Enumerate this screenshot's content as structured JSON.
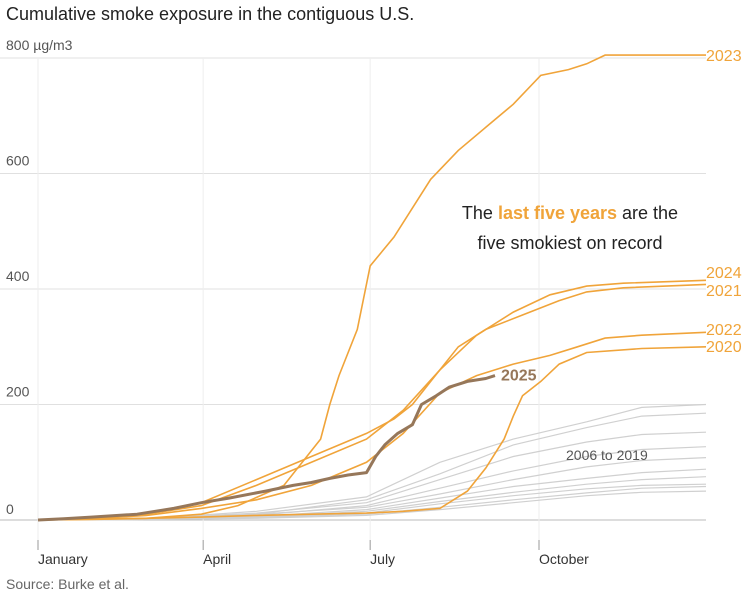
{
  "title": "Cumulative smoke exposure in the contiguous U.S.",
  "source": "Source: Burke et al.",
  "annotation": {
    "before": "The ",
    "highlight": "last five years",
    "after_line1": " are the",
    "line2": "five smokiest on record"
  },
  "chart_data": {
    "type": "line",
    "title": "Cumulative smoke exposure in the contiguous U.S.",
    "ylabel": "",
    "unit": "µg/m3",
    "y_ticks": [
      0,
      200,
      400,
      600,
      800
    ],
    "y_tick_labels": [
      "0",
      "200",
      "400",
      "600",
      "800 µg/m3"
    ],
    "ylim": [
      0,
      800
    ],
    "x_unit": "day of year",
    "xlim": [
      1,
      365
    ],
    "x_ticks": [
      {
        "label": "January",
        "day": 1
      },
      {
        "label": "April",
        "day": 91
      },
      {
        "label": "July",
        "day": 182
      },
      {
        "label": "October",
        "day": 274
      }
    ],
    "grid": "horizontal",
    "colors": {
      "recent": "#f0a43a",
      "y2025": "#96775a",
      "historic": "#d0d0d0",
      "grid": "#e0e0e0"
    },
    "series": [
      {
        "name": "2023",
        "group": "recent",
        "points": [
          [
            1,
            0
          ],
          [
            20,
            1
          ],
          [
            60,
            3
          ],
          [
            90,
            10
          ],
          [
            110,
            25
          ],
          [
            135,
            60
          ],
          [
            155,
            140
          ],
          [
            160,
            200
          ],
          [
            165,
            250
          ],
          [
            175,
            330
          ],
          [
            182,
            440
          ],
          [
            195,
            490
          ],
          [
            205,
            540
          ],
          [
            215,
            590
          ],
          [
            230,
            640
          ],
          [
            245,
            680
          ],
          [
            260,
            720
          ],
          [
            275,
            770
          ],
          [
            290,
            780
          ],
          [
            300,
            790
          ],
          [
            310,
            805
          ],
          [
            365,
            805
          ]
        ]
      },
      {
        "name": "2024",
        "group": "recent",
        "points": [
          [
            1,
            0
          ],
          [
            30,
            2
          ],
          [
            60,
            10
          ],
          [
            90,
            25
          ],
          [
            120,
            60
          ],
          [
            150,
            100
          ],
          [
            180,
            140
          ],
          [
            200,
            190
          ],
          [
            220,
            260
          ],
          [
            240,
            320
          ],
          [
            260,
            360
          ],
          [
            280,
            390
          ],
          [
            300,
            405
          ],
          [
            320,
            410
          ],
          [
            365,
            415
          ]
        ]
      },
      {
        "name": "2021",
        "group": "recent",
        "points": [
          [
            1,
            0
          ],
          [
            30,
            3
          ],
          [
            60,
            12
          ],
          [
            90,
            30
          ],
          [
            120,
            70
          ],
          [
            150,
            110
          ],
          [
            180,
            150
          ],
          [
            195,
            175
          ],
          [
            205,
            200
          ],
          [
            215,
            240
          ],
          [
            230,
            300
          ],
          [
            245,
            330
          ],
          [
            265,
            355
          ],
          [
            285,
            380
          ],
          [
            300,
            395
          ],
          [
            320,
            402
          ],
          [
            365,
            408
          ]
        ]
      },
      {
        "name": "2022",
        "group": "recent",
        "points": [
          [
            1,
            0
          ],
          [
            30,
            2
          ],
          [
            60,
            8
          ],
          [
            90,
            20
          ],
          [
            120,
            35
          ],
          [
            150,
            60
          ],
          [
            180,
            100
          ],
          [
            200,
            150
          ],
          [
            220,
            220
          ],
          [
            240,
            250
          ],
          [
            260,
            270
          ],
          [
            280,
            285
          ],
          [
            295,
            300
          ],
          [
            310,
            315
          ],
          [
            330,
            320
          ],
          [
            365,
            325
          ]
        ]
      },
      {
        "name": "2020",
        "group": "recent",
        "points": [
          [
            1,
            0
          ],
          [
            30,
            1
          ],
          [
            60,
            3
          ],
          [
            90,
            5
          ],
          [
            120,
            8
          ],
          [
            150,
            10
          ],
          [
            180,
            12
          ],
          [
            200,
            15
          ],
          [
            220,
            20
          ],
          [
            235,
            50
          ],
          [
            245,
            90
          ],
          [
            255,
            140
          ],
          [
            260,
            180
          ],
          [
            265,
            215
          ],
          [
            275,
            240
          ],
          [
            285,
            270
          ],
          [
            300,
            290
          ],
          [
            330,
            297
          ],
          [
            365,
            300
          ]
        ]
      },
      {
        "name": "2025",
        "group": "current",
        "points": [
          [
            1,
            0
          ],
          [
            15,
            2
          ],
          [
            30,
            5
          ],
          [
            55,
            10
          ],
          [
            75,
            20
          ],
          [
            90,
            30
          ],
          [
            105,
            38
          ],
          [
            125,
            50
          ],
          [
            140,
            60
          ],
          [
            150,
            65
          ],
          [
            160,
            72
          ],
          [
            170,
            78
          ],
          [
            180,
            82
          ],
          [
            185,
            110
          ],
          [
            190,
            130
          ],
          [
            197,
            150
          ],
          [
            205,
            165
          ],
          [
            210,
            200
          ],
          [
            218,
            215
          ],
          [
            225,
            230
          ],
          [
            235,
            240
          ],
          [
            245,
            245
          ],
          [
            250,
            250
          ]
        ]
      },
      {
        "name": "",
        "group": "historic",
        "points": [
          [
            1,
            0
          ],
          [
            60,
            2
          ],
          [
            120,
            15
          ],
          [
            180,
            40
          ],
          [
            220,
            100
          ],
          [
            260,
            140
          ],
          [
            300,
            170
          ],
          [
            330,
            195
          ],
          [
            365,
            200
          ]
        ]
      },
      {
        "name": "",
        "group": "historic",
        "points": [
          [
            1,
            0
          ],
          [
            60,
            2
          ],
          [
            120,
            10
          ],
          [
            180,
            35
          ],
          [
            220,
            80
          ],
          [
            260,
            130
          ],
          [
            300,
            160
          ],
          [
            330,
            180
          ],
          [
            365,
            185
          ]
        ]
      },
      {
        "name": "",
        "group": "historic",
        "points": [
          [
            1,
            0
          ],
          [
            60,
            3
          ],
          [
            120,
            12
          ],
          [
            180,
            30
          ],
          [
            220,
            70
          ],
          [
            260,
            110
          ],
          [
            300,
            135
          ],
          [
            330,
            148
          ],
          [
            365,
            152
          ]
        ]
      },
      {
        "name": "",
        "group": "historic",
        "points": [
          [
            1,
            0
          ],
          [
            60,
            2
          ],
          [
            120,
            8
          ],
          [
            180,
            25
          ],
          [
            220,
            55
          ],
          [
            260,
            85
          ],
          [
            300,
            110
          ],
          [
            330,
            122
          ],
          [
            365,
            127
          ]
        ]
      },
      {
        "name": "",
        "group": "historic",
        "points": [
          [
            1,
            0
          ],
          [
            60,
            2
          ],
          [
            120,
            10
          ],
          [
            180,
            22
          ],
          [
            220,
            45
          ],
          [
            260,
            70
          ],
          [
            300,
            92
          ],
          [
            330,
            103
          ],
          [
            365,
            108
          ]
        ]
      },
      {
        "name": "",
        "group": "historic",
        "points": [
          [
            1,
            0
          ],
          [
            60,
            1
          ],
          [
            120,
            6
          ],
          [
            180,
            18
          ],
          [
            220,
            38
          ],
          [
            260,
            58
          ],
          [
            300,
            72
          ],
          [
            330,
            82
          ],
          [
            365,
            88
          ]
        ]
      },
      {
        "name": "",
        "group": "historic",
        "points": [
          [
            1,
            0
          ],
          [
            60,
            1
          ],
          [
            120,
            5
          ],
          [
            180,
            15
          ],
          [
            220,
            32
          ],
          [
            260,
            48
          ],
          [
            300,
            62
          ],
          [
            330,
            70
          ],
          [
            365,
            75
          ]
        ]
      },
      {
        "name": "",
        "group": "historic",
        "points": [
          [
            1,
            0
          ],
          [
            60,
            1
          ],
          [
            120,
            5
          ],
          [
            180,
            12
          ],
          [
            220,
            28
          ],
          [
            260,
            42
          ],
          [
            300,
            54
          ],
          [
            330,
            60
          ],
          [
            365,
            62
          ]
        ]
      },
      {
        "name": "",
        "group": "historic",
        "points": [
          [
            1,
            0
          ],
          [
            60,
            1
          ],
          [
            120,
            4
          ],
          [
            180,
            10
          ],
          [
            220,
            22
          ],
          [
            260,
            35
          ],
          [
            300,
            47
          ],
          [
            330,
            55
          ],
          [
            365,
            58
          ]
        ]
      },
      {
        "name": "",
        "group": "historic",
        "points": [
          [
            1,
            0
          ],
          [
            60,
            1
          ],
          [
            120,
            3
          ],
          [
            180,
            8
          ],
          [
            220,
            18
          ],
          [
            260,
            30
          ],
          [
            300,
            42
          ],
          [
            330,
            48
          ],
          [
            365,
            50
          ]
        ]
      }
    ],
    "series_label_2006_2019": "2006 to 2019"
  }
}
